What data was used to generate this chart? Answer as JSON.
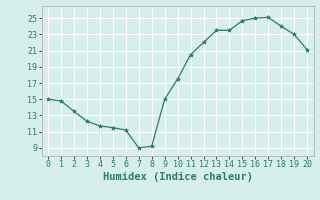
{
  "x": [
    0,
    1,
    2,
    3,
    4,
    5,
    6,
    7,
    8,
    9,
    10,
    11,
    12,
    13,
    14,
    15,
    16,
    17,
    18,
    19,
    20
  ],
  "y": [
    15.0,
    14.8,
    13.5,
    12.3,
    11.7,
    11.5,
    11.2,
    9.0,
    9.2,
    15.0,
    17.5,
    20.5,
    22.0,
    23.5,
    23.5,
    24.7,
    25.0,
    25.1,
    24.0,
    23.0,
    21.1
  ],
  "line_color": "#2d7a6e",
  "marker": "*",
  "marker_size": 3,
  "bg_color": "#d6eeec",
  "grid_color": "#ffffff",
  "xlabel": "Humidex (Indice chaleur)",
  "xlabel_fontsize": 7.5,
  "xlabel_fontweight": "bold",
  "yticks": [
    9,
    11,
    13,
    15,
    17,
    19,
    21,
    23,
    25
  ],
  "xticks": [
    0,
    1,
    2,
    3,
    4,
    5,
    6,
    7,
    8,
    9,
    10,
    11,
    12,
    13,
    14,
    15,
    16,
    17,
    18,
    19,
    20
  ],
  "ylim": [
    8.0,
    26.5
  ],
  "xlim": [
    -0.5,
    20.5
  ],
  "tick_fontsize": 6.0,
  "line_width": 0.9
}
